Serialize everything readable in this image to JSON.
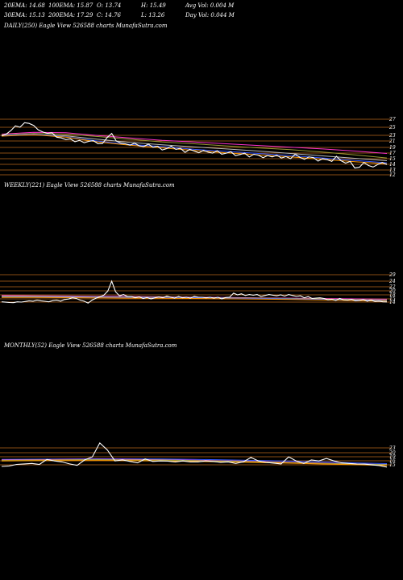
{
  "header": {
    "row1": [
      "20EMA: 14.68",
      "100EMA: 15.87",
      "O: 13.74",
      "H: 15.49",
      "Avg Vol: 0.004  M"
    ],
    "row2": [
      "30EMA: 15.13",
      "200EMA: 17.29",
      "C: 14.76",
      "L: 13.26",
      "Day Vol: 0.044  M"
    ]
  },
  "colors": {
    "background": "#000000",
    "price_line": "#ffffff",
    "resistance_lines": "#b5651d",
    "ema_pink": "#ff33cc",
    "ema_blue": "#3355ff",
    "ema_orange": "#ff9900",
    "ema_olive": "#999933",
    "ema_gray": "#bbbbbb"
  },
  "chart_data": [
    {
      "type": "line",
      "title": "DAILY(250) Eagle  View  526588  charts MunafaSutra.com",
      "tick_labels": [
        "27",
        "25",
        "23",
        "21",
        "19",
        "17",
        "15",
        "14",
        "13",
        "12"
      ],
      "ylim": [
        11,
        28
      ],
      "series_price": [
        22.5,
        23,
        24,
        25.4,
        25,
        26.3,
        26.1,
        25.5,
        24.2,
        23.6,
        23.2,
        23.4,
        22.1,
        21.9,
        21.4,
        21.6,
        20.8,
        21.2,
        20.5,
        20.9,
        21.1,
        20.2,
        20.3,
        22,
        23.2,
        21,
        20.4,
        20.2,
        19.8,
        20.4,
        19.6,
        19.4,
        20.1,
        19.2,
        19.5,
        18.4,
        18.8,
        19.5,
        18.6,
        18.9,
        17.7,
        18.6,
        18.1,
        17.6,
        18.3,
        17.8,
        17.5,
        18.2,
        17.2,
        17.5,
        17.9,
        16.8,
        17.1,
        17.5,
        16.4,
        17.2,
        16.9,
        16.2,
        16.8,
        16.4,
        16.9,
        16.1,
        16.5,
        15.9,
        17.2,
        16.3,
        15.7,
        16.4,
        16.2,
        15.2,
        15.9,
        15.6,
        15.1,
        16.6,
        15.3,
        14.6,
        15.1,
        13.2,
        13.4,
        14.8,
        13.9,
        13.5,
        14.2,
        14.8,
        14.2
      ],
      "ema_series": [
        {
          "color": "#ff33cc",
          "values": [
            23,
            23.5,
            23.4,
            22.6,
            21.9,
            21.2,
            20.7,
            20.2,
            19.7,
            19.2,
            18.7,
            18.1,
            17.4
          ]
        },
        {
          "color": "#999933",
          "values": [
            22.8,
            23.2,
            23,
            22.3,
            21.5,
            20.7,
            20.2,
            19.6,
            19,
            18.5,
            17.8,
            17,
            16.1
          ]
        },
        {
          "color": "#bbbbbb",
          "values": [
            22.5,
            22.9,
            22.5,
            21.5,
            20.6,
            19.9,
            19.3,
            18.7,
            18.1,
            17.4,
            16.7,
            16,
            15.3
          ]
        },
        {
          "color": "#3355ff",
          "values": [
            22.6,
            23,
            22.2,
            21,
            20,
            19.4,
            18.6,
            18,
            17.4,
            16.8,
            16.1,
            15.4,
            14.7
          ]
        },
        {
          "color": "#ff9900",
          "values": [
            22.4,
            22.8,
            22.1,
            20.7,
            19.8,
            19,
            18.3,
            17.6,
            17,
            16.4,
            15.7,
            15,
            14.4
          ]
        }
      ]
    },
    {
      "type": "line",
      "title": "WEEKLY(221) Eagle  View  526588  charts MunafaSutra.com",
      "tick_labels": [
        "29",
        "24",
        "22",
        "20",
        "18",
        "15",
        "14"
      ],
      "ylim": [
        11,
        52
      ],
      "series_price": [
        15,
        14.5,
        14,
        13.8,
        15,
        14.6,
        15.5,
        16.5,
        16,
        17.5,
        16.5,
        15.8,
        15,
        16.8,
        17.5,
        16,
        18.5,
        19.2,
        21,
        20,
        17.5,
        16,
        13.2,
        17.5,
        20.5,
        22.5,
        25,
        31,
        46,
        30,
        24,
        26,
        23,
        23,
        21,
        22.5,
        20,
        21.5,
        19.5,
        21,
        22.5,
        21,
        23.5,
        22,
        20.5,
        23,
        21,
        22,
        20.5,
        23,
        22,
        21.8,
        21,
        22,
        20.5,
        22,
        19.5,
        21.5,
        22,
        28,
        25.5,
        27,
        24.5,
        26,
        25,
        26,
        23,
        24.5,
        26,
        25,
        24,
        25.5,
        23.5,
        26,
        24.5,
        23,
        24,
        21,
        22.8,
        20,
        20.5,
        21,
        20,
        18,
        19,
        17,
        20,
        18,
        17.5,
        18.8,
        16.5,
        17,
        18.5,
        16,
        17.5,
        15.5,
        16,
        15,
        14.8
      ],
      "ema_series": [
        {
          "color": "#ff33cc",
          "values": [
            24.5,
            24.2,
            23.8,
            23.4,
            23,
            22.5,
            22,
            21.5,
            21,
            20.5,
            20,
            19.5,
            19
          ]
        },
        {
          "color": "#999933",
          "values": [
            23.5,
            23.3,
            23,
            22.7,
            22.3,
            22,
            21.6,
            21.1,
            20.6,
            20,
            19.3,
            18.6,
            18
          ]
        },
        {
          "color": "#bbbbbb",
          "values": [
            23,
            22.9,
            22.6,
            22.2,
            21.9,
            21.5,
            21.2,
            20.8,
            20.2,
            19.5,
            18.7,
            17.9,
            17.2
          ]
        },
        {
          "color": "#3355ff",
          "values": [
            22,
            22,
            21.8,
            21.9,
            21.5,
            21.3,
            20.9,
            20.4,
            19.9,
            19.3,
            18.5,
            17.5,
            16.6
          ]
        },
        {
          "color": "#ff9900",
          "values": [
            21.5,
            21.5,
            21.2,
            21,
            20.7,
            20.5,
            20,
            19.6,
            19.1,
            18.5,
            17.7,
            16.8,
            15.9
          ]
        }
      ]
    },
    {
      "type": "line",
      "title": "MONTHLY(52) Eagle  View  526588  charts MunafaSutra.com",
      "tick_labels": [
        "23",
        "20",
        "19",
        "16",
        "15"
      ],
      "ylim": [
        10,
        44
      ],
      "series_price": [
        16.5,
        17,
        18.5,
        19,
        19.5,
        18.5,
        23.5,
        22,
        21,
        19,
        17.5,
        23,
        26,
        40,
        33,
        22,
        23,
        21.5,
        20,
        24,
        21.5,
        22,
        21.8,
        21,
        22,
        21,
        21,
        22,
        21.5,
        20.6,
        21,
        19.5,
        21,
        25.5,
        22,
        20.5,
        19.8,
        19,
        26,
        22,
        19.5,
        23,
        22,
        24.5,
        22,
        20,
        19.5,
        19,
        18.8,
        18,
        17.4,
        15.8
      ],
      "ema_series": [
        {
          "color": "#3355ff",
          "values": [
            23.5,
            23.8,
            24,
            24.2,
            24.1,
            24,
            23.6,
            23,
            22.5,
            21.8,
            21,
            20,
            19.3
          ]
        },
        {
          "color": "#ff33cc",
          "values": [
            23,
            23.3,
            23.5,
            23.7,
            23.5,
            23.2,
            22.7,
            22.1,
            21.4,
            20.6,
            19.8,
            19,
            18.2
          ]
        },
        {
          "color": "#bbbbbb",
          "values": [
            22.8,
            23,
            23.2,
            23.4,
            23.2,
            23,
            22.5,
            21.9,
            21.2,
            20.4,
            19.6,
            18.9,
            18.4
          ]
        },
        {
          "color": "#999933",
          "values": [
            22.5,
            22.8,
            23,
            23.2,
            22.9,
            22.6,
            22.2,
            21.6,
            21,
            20.2,
            19.4,
            18.7,
            18
          ]
        },
        {
          "color": "#ff9900",
          "values": [
            22,
            22.2,
            22.3,
            22.5,
            22.2,
            21.9,
            21.5,
            21,
            20.4,
            19.7,
            18.9,
            18.2,
            17.5
          ]
        }
      ]
    }
  ]
}
